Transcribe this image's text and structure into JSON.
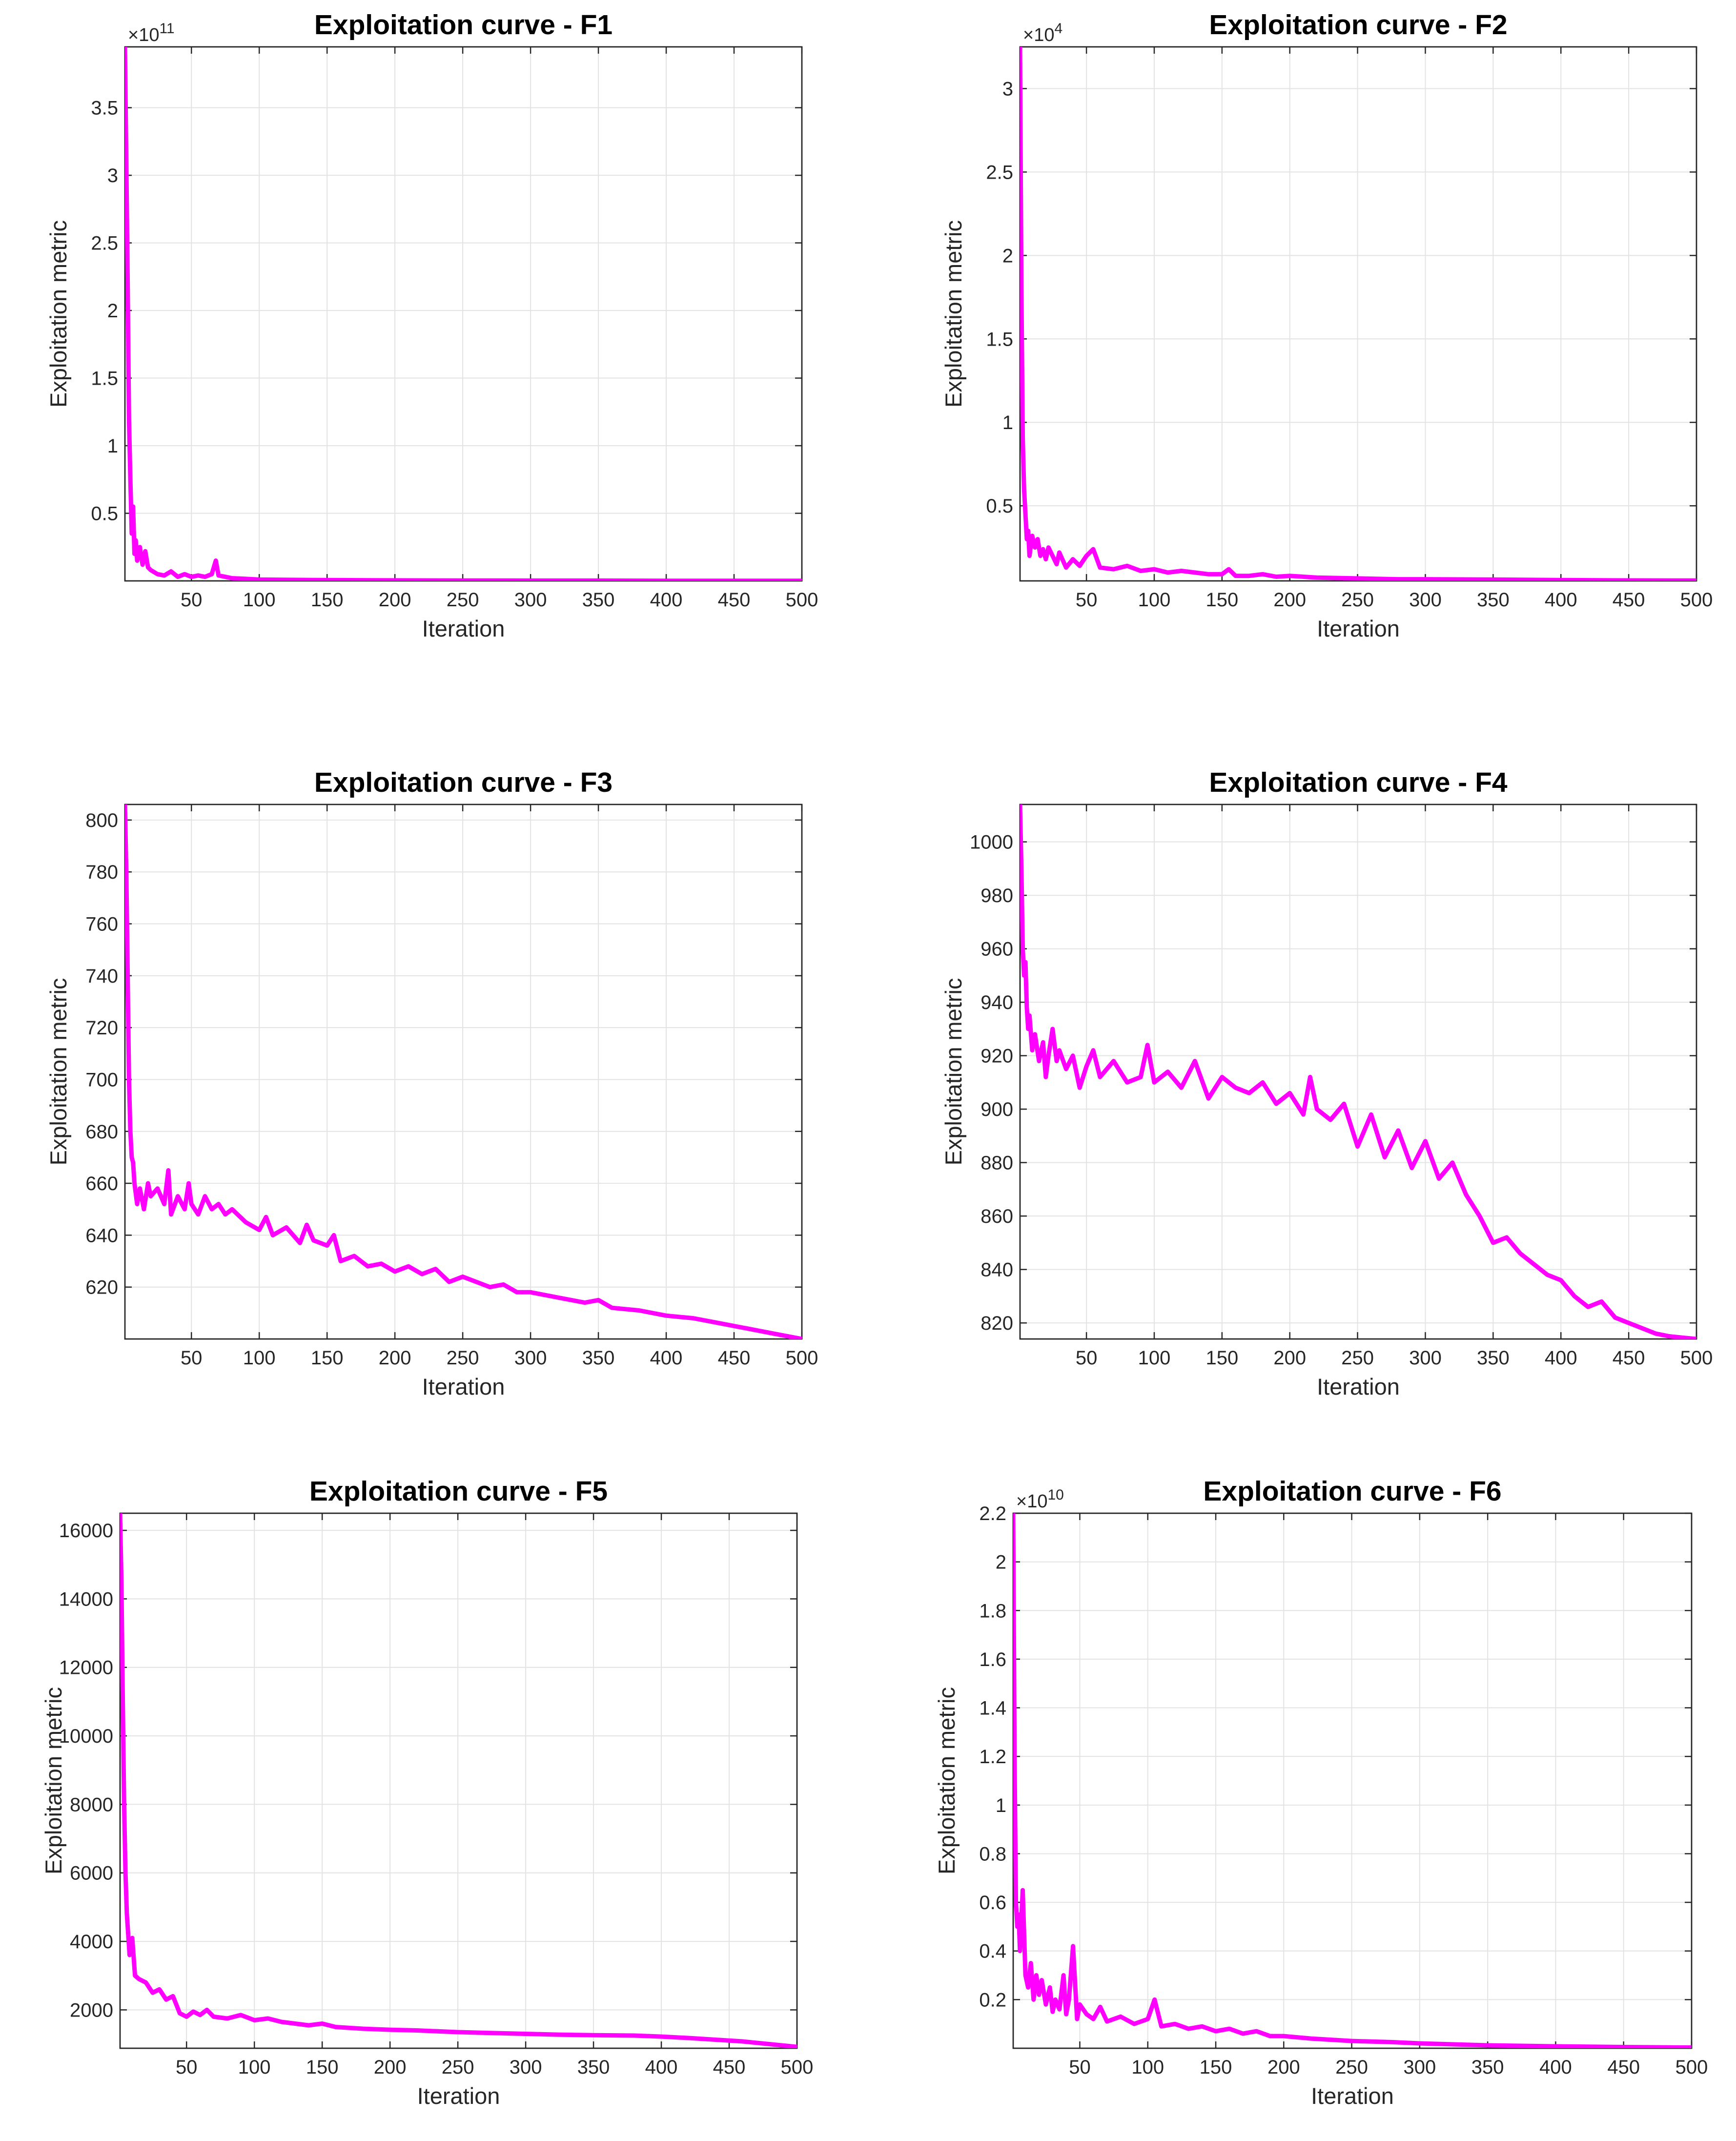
{
  "style": {
    "line_color": "#ff00ff",
    "grid_color": "#e3e3e3",
    "axis_color": "#262626",
    "background": "#ffffff"
  },
  "chart_data": [
    {
      "id": "f1",
      "type": "line",
      "title": "Exploitation curve - F1",
      "xlabel": "Iteration",
      "ylabel": "Exploitation metric",
      "grid": true,
      "xlim": [
        1,
        500
      ],
      "ylim": [
        0,
        3.95
      ],
      "exponent": "11",
      "x_ticks": [
        50,
        100,
        150,
        200,
        250,
        300,
        350,
        400,
        450,
        500
      ],
      "x_tick_labels": [
        "50",
        "100",
        "150",
        "200",
        "250",
        "300",
        "350",
        "400",
        "450",
        "500"
      ],
      "y_ticks": [
        0.5,
        1,
        1.5,
        2,
        2.5,
        3,
        3.5
      ],
      "y_tick_labels": [
        "0.5",
        "1",
        "1.5",
        "2",
        "2.5",
        "3",
        "3.5"
      ],
      "series": [
        {
          "name": "Exploitation",
          "x": [
            1,
            2,
            3,
            4,
            5,
            6,
            7,
            8,
            9,
            10,
            12,
            14,
            16,
            18,
            20,
            25,
            30,
            35,
            40,
            45,
            50,
            55,
            60,
            65,
            68,
            70,
            75,
            80,
            90,
            100,
            120,
            150,
            200,
            250,
            300,
            350,
            400,
            450,
            500
          ],
          "y": [
            3.95,
            3.1,
            2.2,
            1.2,
            0.75,
            0.35,
            0.55,
            0.2,
            0.3,
            0.15,
            0.25,
            0.12,
            0.22,
            0.1,
            0.08,
            0.05,
            0.04,
            0.07,
            0.03,
            0.05,
            0.03,
            0.04,
            0.03,
            0.05,
            0.15,
            0.04,
            0.03,
            0.02,
            0.015,
            0.01,
            0.008,
            0.006,
            0.004,
            0.003,
            0.002,
            0.002,
            0.001,
            0.001,
            0.001
          ]
        }
      ]
    },
    {
      "id": "f2",
      "type": "line",
      "title": "Exploitation curve - F2",
      "xlabel": "Iteration",
      "ylabel": "Exploitation metric",
      "grid": true,
      "xlim": [
        1,
        500
      ],
      "ylim": [
        0.05,
        3.25
      ],
      "exponent": "4",
      "x_ticks": [
        50,
        100,
        150,
        200,
        250,
        300,
        350,
        400,
        450,
        500
      ],
      "x_tick_labels": [
        "50",
        "100",
        "150",
        "200",
        "250",
        "300",
        "350",
        "400",
        "450",
        "500"
      ],
      "y_ticks": [
        0.5,
        1,
        1.5,
        2,
        2.5,
        3
      ],
      "y_tick_labels": [
        "0.5",
        "1",
        "1.5",
        "2",
        "2.5",
        "3"
      ],
      "series": [
        {
          "name": "Exploitation",
          "x": [
            1,
            2,
            3,
            4,
            5,
            6,
            7,
            8,
            10,
            12,
            14,
            16,
            18,
            20,
            22,
            25,
            28,
            30,
            35,
            40,
            45,
            50,
            55,
            60,
            70,
            80,
            90,
            100,
            110,
            120,
            130,
            140,
            150,
            155,
            160,
            170,
            180,
            190,
            200,
            220,
            250,
            280,
            300,
            350,
            400,
            450,
            500
          ],
          "y": [
            3.25,
            1.8,
            0.9,
            0.6,
            0.45,
            0.3,
            0.35,
            0.2,
            0.32,
            0.25,
            0.3,
            0.2,
            0.24,
            0.18,
            0.25,
            0.2,
            0.15,
            0.22,
            0.13,
            0.18,
            0.14,
            0.2,
            0.24,
            0.13,
            0.12,
            0.14,
            0.11,
            0.12,
            0.1,
            0.11,
            0.1,
            0.09,
            0.09,
            0.12,
            0.08,
            0.08,
            0.09,
            0.075,
            0.08,
            0.07,
            0.065,
            0.06,
            0.06,
            0.058,
            0.055,
            0.053,
            0.052
          ]
        }
      ]
    },
    {
      "id": "f3",
      "type": "line",
      "title": "Exploitation curve - F3",
      "xlabel": "Iteration",
      "ylabel": "Exploitation metric",
      "grid": true,
      "xlim": [
        1,
        500
      ],
      "ylim": [
        600,
        806
      ],
      "exponent": "",
      "x_ticks": [
        50,
        100,
        150,
        200,
        250,
        300,
        350,
        400,
        450,
        500
      ],
      "x_tick_labels": [
        "50",
        "100",
        "150",
        "200",
        "250",
        "300",
        "350",
        "400",
        "450",
        "500"
      ],
      "y_ticks": [
        620,
        640,
        660,
        680,
        700,
        720,
        740,
        760,
        780,
        800
      ],
      "y_tick_labels": [
        "620",
        "640",
        "660",
        "680",
        "700",
        "720",
        "740",
        "760",
        "780",
        "800"
      ],
      "series": [
        {
          "name": "Exploitation",
          "x": [
            1,
            2,
            3,
            4,
            5,
            6,
            7,
            8,
            10,
            12,
            15,
            18,
            20,
            25,
            30,
            33,
            35,
            40,
            45,
            48,
            50,
            55,
            60,
            65,
            70,
            75,
            80,
            90,
            100,
            105,
            110,
            120,
            130,
            135,
            140,
            150,
            155,
            160,
            170,
            180,
            190,
            200,
            210,
            220,
            230,
            240,
            250,
            260,
            270,
            280,
            290,
            300,
            320,
            340,
            350,
            360,
            380,
            400,
            420,
            440,
            460,
            480,
            500
          ],
          "y": [
            806,
            780,
            740,
            700,
            680,
            670,
            668,
            660,
            652,
            658,
            650,
            660,
            655,
            658,
            652,
            665,
            648,
            655,
            650,
            660,
            652,
            648,
            655,
            650,
            652,
            648,
            650,
            645,
            642,
            647,
            640,
            643,
            637,
            644,
            638,
            636,
            640,
            630,
            632,
            628,
            629,
            626,
            628,
            625,
            627,
            622,
            624,
            622,
            620,
            621,
            618,
            618,
            616,
            614,
            615,
            612,
            611,
            609,
            608,
            606,
            604,
            602,
            600
          ]
        }
      ]
    },
    {
      "id": "f4",
      "type": "line",
      "title": "Exploitation curve - F4",
      "xlabel": "Iteration",
      "ylabel": "Exploitation metric",
      "grid": true,
      "xlim": [
        1,
        500
      ],
      "ylim": [
        814,
        1014
      ],
      "exponent": "",
      "x_ticks": [
        50,
        100,
        150,
        200,
        250,
        300,
        350,
        400,
        450,
        500
      ],
      "x_tick_labels": [
        "50",
        "100",
        "150",
        "200",
        "250",
        "300",
        "350",
        "400",
        "450",
        "500"
      ],
      "y_ticks": [
        820,
        840,
        860,
        880,
        900,
        920,
        940,
        960,
        980,
        1000
      ],
      "y_tick_labels": [
        "820",
        "840",
        "860",
        "880",
        "900",
        "920",
        "940",
        "960",
        "980",
        "1000"
      ],
      "series": [
        {
          "name": "Exploitation",
          "x": [
            1,
            2,
            3,
            4,
            5,
            6,
            7,
            8,
            10,
            12,
            15,
            18,
            20,
            22,
            25,
            28,
            30,
            35,
            40,
            45,
            50,
            55,
            60,
            70,
            80,
            90,
            95,
            100,
            110,
            120,
            130,
            140,
            150,
            160,
            170,
            180,
            190,
            200,
            210,
            215,
            220,
            230,
            240,
            250,
            260,
            270,
            280,
            290,
            300,
            310,
            320,
            330,
            340,
            350,
            360,
            370,
            380,
            390,
            400,
            410,
            420,
            430,
            440,
            450,
            460,
            470,
            480,
            490,
            500
          ],
          "y": [
            1014,
            990,
            960,
            950,
            955,
            938,
            930,
            935,
            922,
            928,
            918,
            925,
            912,
            920,
            930,
            918,
            922,
            915,
            920,
            908,
            916,
            922,
            912,
            918,
            910,
            912,
            924,
            910,
            914,
            908,
            918,
            904,
            912,
            908,
            906,
            910,
            902,
            906,
            898,
            912,
            900,
            896,
            902,
            886,
            898,
            882,
            892,
            878,
            888,
            874,
            880,
            868,
            860,
            850,
            852,
            846,
            842,
            838,
            836,
            830,
            826,
            828,
            822,
            820,
            818,
            816,
            815,
            814.5,
            814
          ]
        }
      ]
    },
    {
      "id": "f5",
      "type": "line",
      "title": "Exploitation curve - F5",
      "xlabel": "Iteration",
      "ylabel": "Exploitation metric",
      "grid": true,
      "xlim": [
        1,
        500
      ],
      "ylim": [
        880,
        16500
      ],
      "exponent": "",
      "x_ticks": [
        50,
        100,
        150,
        200,
        250,
        300,
        350,
        400,
        450,
        500
      ],
      "x_tick_labels": [
        "50",
        "100",
        "150",
        "200",
        "250",
        "300",
        "350",
        "400",
        "450",
        "500"
      ],
      "y_ticks": [
        2000,
        4000,
        6000,
        8000,
        10000,
        12000,
        14000,
        16000
      ],
      "y_tick_labels": [
        "2000",
        "4000",
        "6000",
        "8000",
        "10000",
        "12000",
        "14000",
        "16000"
      ],
      "series": [
        {
          "name": "Exploitation",
          "x": [
            1,
            2,
            3,
            4,
            5,
            6,
            7,
            8,
            10,
            12,
            15,
            20,
            25,
            30,
            35,
            40,
            45,
            50,
            55,
            60,
            65,
            70,
            80,
            90,
            100,
            110,
            120,
            130,
            140,
            150,
            160,
            180,
            200,
            220,
            250,
            280,
            300,
            320,
            350,
            380,
            400,
            420,
            440,
            460,
            480,
            500
          ],
          "y": [
            16500,
            14500,
            11000,
            8000,
            6000,
            4800,
            4200,
            3600,
            4100,
            3000,
            2900,
            2800,
            2500,
            2600,
            2300,
            2400,
            1900,
            1800,
            1950,
            1850,
            2000,
            1800,
            1750,
            1850,
            1700,
            1750,
            1650,
            1600,
            1550,
            1600,
            1500,
            1450,
            1420,
            1400,
            1350,
            1320,
            1300,
            1280,
            1260,
            1250,
            1220,
            1180,
            1130,
            1080,
            1000,
            920
          ]
        }
      ]
    },
    {
      "id": "f6",
      "type": "line",
      "title": "Exploitation curve - F6",
      "xlabel": "Iteration",
      "ylabel": "Exploitation metric",
      "grid": true,
      "xlim": [
        1,
        500
      ],
      "ylim": [
        0,
        2.2
      ],
      "exponent": "10",
      "x_ticks": [
        50,
        100,
        150,
        200,
        250,
        300,
        350,
        400,
        450,
        500
      ],
      "x_tick_labels": [
        "50",
        "100",
        "150",
        "200",
        "250",
        "300",
        "350",
        "400",
        "450",
        "500"
      ],
      "y_ticks": [
        0.2,
        0.4,
        0.6,
        0.8,
        1,
        1.2,
        1.4,
        1.6,
        1.8,
        2,
        2.2
      ],
      "y_tick_labels": [
        "0.2",
        "0.4",
        "0.6",
        "0.8",
        "1",
        "1.2",
        "1.4",
        "1.6",
        "1.8",
        "2",
        "2.2"
      ],
      "series": [
        {
          "name": "Exploitation",
          "x": [
            1,
            2,
            3,
            4,
            5,
            6,
            8,
            10,
            12,
            14,
            16,
            18,
            20,
            22,
            25,
            28,
            30,
            32,
            35,
            38,
            40,
            42,
            45,
            48,
            50,
            55,
            60,
            65,
            70,
            80,
            90,
            100,
            105,
            110,
            120,
            130,
            140,
            150,
            160,
            170,
            180,
            190,
            200,
            220,
            250,
            280,
            300,
            350,
            400,
            450,
            500
          ],
          "y": [
            2.2,
            1.2,
            0.6,
            0.5,
            0.55,
            0.4,
            0.65,
            0.3,
            0.25,
            0.35,
            0.2,
            0.3,
            0.22,
            0.28,
            0.18,
            0.25,
            0.15,
            0.2,
            0.16,
            0.3,
            0.14,
            0.2,
            0.42,
            0.12,
            0.18,
            0.14,
            0.12,
            0.17,
            0.11,
            0.13,
            0.1,
            0.12,
            0.2,
            0.09,
            0.1,
            0.08,
            0.09,
            0.07,
            0.08,
            0.06,
            0.07,
            0.05,
            0.05,
            0.04,
            0.03,
            0.025,
            0.02,
            0.012,
            0.008,
            0.005,
            0.003
          ]
        }
      ]
    }
  ]
}
